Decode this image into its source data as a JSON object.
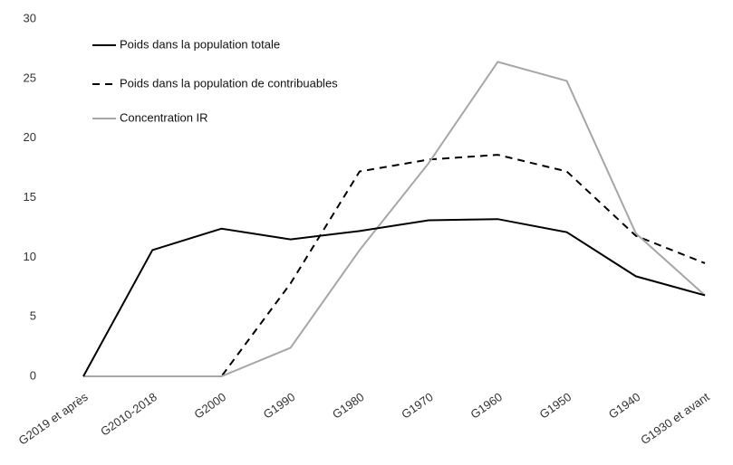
{
  "chart_data": {
    "type": "line",
    "categories": [
      "G2019 et après",
      "G2010-2018",
      "G2000",
      "G1990",
      "G1980",
      "G1970",
      "G1960",
      "G1950",
      "G1940",
      "G1930 et avant"
    ],
    "series": [
      {
        "name": "Poids dans la population totale",
        "color": "#000000",
        "style": "solid",
        "values": [
          0,
          10.6,
          12.4,
          11.5,
          12.2,
          13.1,
          13.2,
          12.1,
          8.4,
          6.8
        ]
      },
      {
        "name": "Poids dans la population de contribuables",
        "color": "#000000",
        "style": "dashed",
        "values": [
          0,
          0,
          0,
          7.8,
          17.2,
          18.2,
          18.6,
          17.2,
          11.8,
          9.5
        ]
      },
      {
        "name": "Concentration IR",
        "color": "#a6a6a6",
        "style": "solid",
        "values": [
          0,
          0,
          0,
          2.4,
          10.6,
          17.9,
          26.4,
          24.8,
          12.0,
          6.8
        ]
      }
    ],
    "ylim": [
      0,
      30
    ],
    "yticks": [
      0,
      5,
      10,
      15,
      20,
      25,
      30
    ],
    "grid": false,
    "legend": "top-left"
  }
}
